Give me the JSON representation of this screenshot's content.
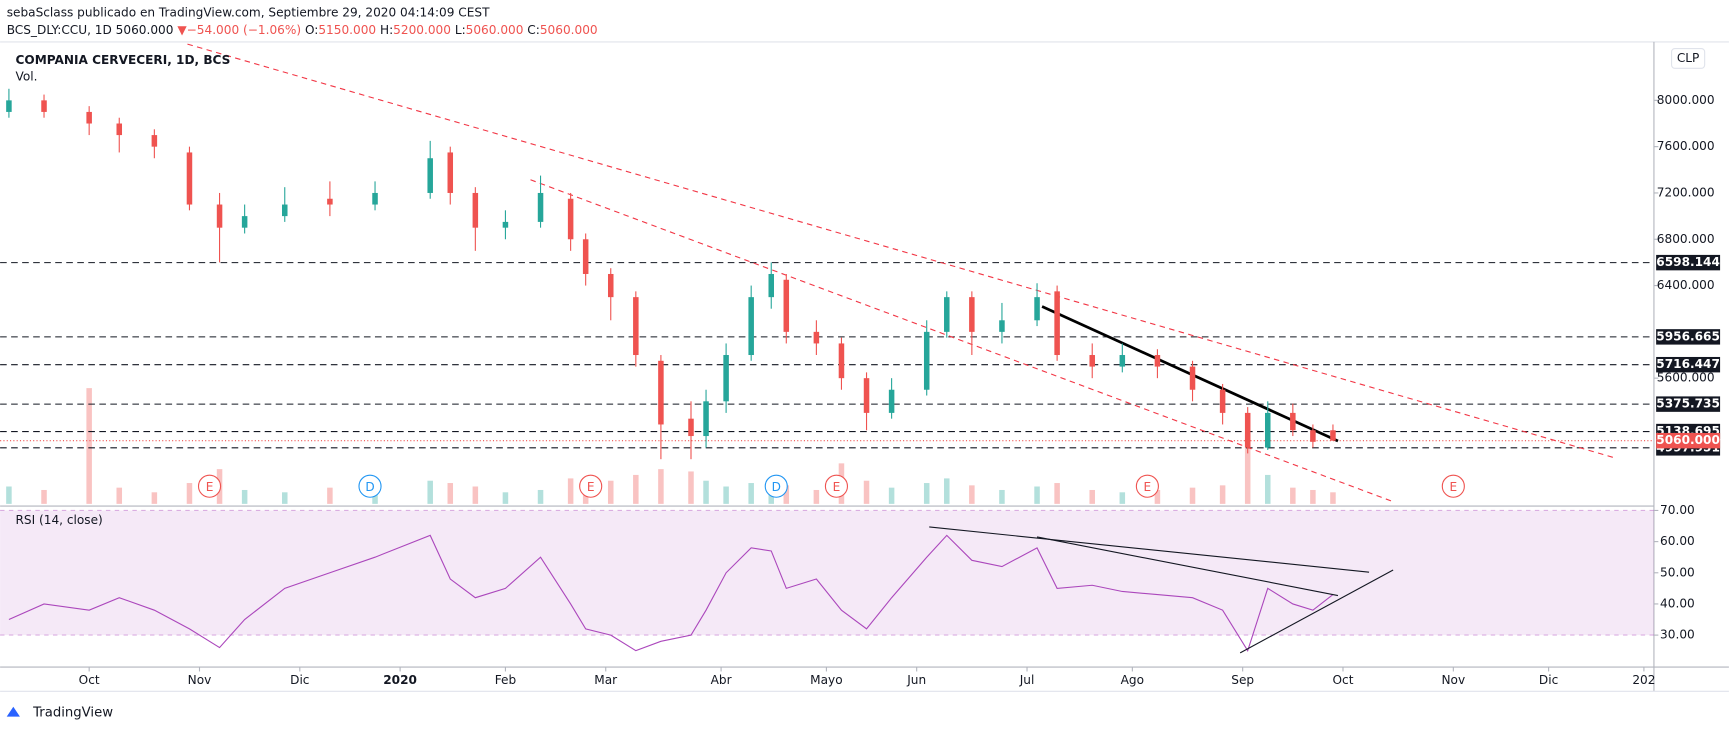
{
  "header": {
    "publisher": "sebaSclass publicado en TradingView.com, Septiembre 29, 2020 04:14:09 CEST",
    "symbol": "BCS_DLY:CCU, 1D",
    "last": "5060.000",
    "arrow": "▼",
    "change": "−54.000 (−1.06%)",
    "o_label": "O:",
    "o": "5150.000",
    "h_label": "H:",
    "h": "5200.000",
    "l_label": "L:",
    "l": "5060.000",
    "c_label": "C:",
    "c": "5060.000",
    "footer": "TradingView"
  },
  "chart_data": {
    "type": "candlestick",
    "title": "COMPANIA CERVECERI, 1D, BCS",
    "volume_title": "Vol.",
    "currency": "CLP",
    "up_color": "#26a69a",
    "down_color": "#ef5350",
    "candles": {
      "x": [
        0,
        7,
        16,
        22,
        29,
        36,
        42,
        47,
        55,
        64,
        73,
        84,
        88,
        93,
        99,
        106,
        112,
        115,
        120,
        125,
        130,
        136,
        139,
        143,
        148,
        152,
        155,
        161,
        166,
        171,
        176,
        183,
        187,
        192,
        198,
        205,
        209,
        216,
        222,
        229,
        236,
        242,
        247,
        251,
        256,
        260,
        264
      ],
      "open": [
        7900,
        8000,
        7900,
        7800,
        7700,
        7550,
        7100,
        6900,
        7000,
        7150,
        7100,
        7200,
        7550,
        7200,
        6900,
        6950,
        7150,
        6800,
        6500,
        6300,
        5750,
        5250,
        5100,
        5400,
        5800,
        6300,
        6450,
        6000,
        5900,
        5600,
        5300,
        5500,
        6000,
        6300,
        6000,
        6100,
        6350,
        5800,
        5700,
        5800,
        5700,
        5500,
        5300,
        5000,
        5300,
        5150,
        5150
      ],
      "high": [
        8100,
        8050,
        7950,
        7850,
        7750,
        7600,
        7200,
        7100,
        7250,
        7300,
        7300,
        7650,
        7600,
        7250,
        7050,
        7350,
        7200,
        6850,
        6550,
        6350,
        5800,
        5400,
        5500,
        5900,
        6400,
        6600,
        6500,
        6100,
        5950,
        5650,
        5600,
        6100,
        6350,
        6350,
        6250,
        6420,
        6400,
        5900,
        5900,
        5850,
        5750,
        5550,
        5350,
        5400,
        5380,
        5200,
        5200
      ],
      "low": [
        7850,
        7850,
        7700,
        7550,
        7500,
        7050,
        6600,
        6850,
        6950,
        7000,
        7050,
        7150,
        7100,
        6700,
        6800,
        6900,
        6700,
        6400,
        6100,
        5700,
        4900,
        4900,
        5000,
        5300,
        5750,
        6200,
        5900,
        5800,
        5500,
        5150,
        5250,
        5450,
        5950,
        5800,
        5900,
        6050,
        5750,
        5600,
        5650,
        5600,
        5400,
        5200,
        4950,
        4980,
        5100,
        5000,
        5060
      ],
      "close": [
        8000,
        7900,
        7800,
        7700,
        7600,
        7100,
        6900,
        7000,
        7100,
        7100,
        7200,
        7500,
        7200,
        6900,
        6950,
        7200,
        6800,
        6500,
        6300,
        5800,
        5200,
        5100,
        5400,
        5800,
        6300,
        6500,
        6000,
        5900,
        5600,
        5300,
        5500,
        6000,
        6300,
        6000,
        6100,
        6300,
        5800,
        5700,
        5800,
        5700,
        5500,
        5300,
        5000,
        5300,
        5150,
        5050,
        5060
      ],
      "volume": [
        15,
        12,
        100,
        14,
        10,
        18,
        30,
        12,
        10,
        14,
        12,
        20,
        18,
        15,
        10,
        12,
        22,
        18,
        20,
        25,
        30,
        28,
        20,
        15,
        18,
        22,
        16,
        12,
        35,
        20,
        14,
        18,
        22,
        16,
        12,
        15,
        18,
        12,
        10,
        12,
        14,
        16,
        60,
        25,
        14,
        12,
        10
      ]
    },
    "xlim": [
      -1.76,
      328
    ],
    "ylim": [
      4514,
      8486
    ],
    "volume_ylim": [
      0,
      100
    ],
    "yticks": [
      {
        "value": 5600,
        "label": "5600.000"
      },
      {
        "value": 6400,
        "label": "6400.000"
      },
      {
        "value": 6800,
        "label": "6800.000"
      },
      {
        "value": 7200,
        "label": "7200.000"
      },
      {
        "value": 7600,
        "label": "7600.000"
      },
      {
        "value": 8000,
        "label": "8000.000"
      }
    ],
    "xticks": [
      {
        "value": 16,
        "label": "Oct"
      },
      {
        "value": 38,
        "label": "Nov"
      },
      {
        "value": 58,
        "label": "Dic"
      },
      {
        "value": 78,
        "label": "2020"
      },
      {
        "value": 99,
        "label": "Feb"
      },
      {
        "value": 119,
        "label": "Mar"
      },
      {
        "value": 142,
        "label": "Abr"
      },
      {
        "value": 163,
        "label": "Mayo"
      },
      {
        "value": 181,
        "label": "Jun"
      },
      {
        "value": 203,
        "label": "Jul"
      },
      {
        "value": 224,
        "label": "Ago"
      },
      {
        "value": 246,
        "label": "Sep"
      },
      {
        "value": 266,
        "label": "Oct"
      },
      {
        "value": 288,
        "label": "Nov"
      },
      {
        "value": 307,
        "label": "Dic"
      },
      {
        "value": 326,
        "label": "202"
      }
    ],
    "levels": [
      6598.144,
      5956.665,
      5716.447,
      5375.735,
      5138.695,
      4997.951
    ],
    "current": {
      "value": 5060,
      "label": "5060.000",
      "color": "#ef5350"
    },
    "events": [
      {
        "x": 40,
        "label": "E"
      },
      {
        "x": 72,
        "label": "D"
      },
      {
        "x": 116,
        "label": "E"
      },
      {
        "x": 153,
        "label": "D"
      },
      {
        "x": 165,
        "label": "E"
      },
      {
        "x": 227,
        "label": "E"
      },
      {
        "x": 288,
        "label": "E"
      }
    ],
    "event_colors": {
      "E": "#ef5350",
      "D": "#2196f3"
    },
    "drawings": [
      {
        "x": [
          35.6,
          320
        ],
        "y": [
          8486,
          4914
        ],
        "color": "#f23645",
        "dashed": true
      },
      {
        "x": [
          104,
          276
        ],
        "y": [
          7314,
          4533
        ],
        "color": "#f23645",
        "dashed": true
      },
      {
        "x": [
          206,
          265
        ],
        "y": [
          6219,
          5057
        ],
        "color": "#000000",
        "dashed": false
      }
    ],
    "rsi": {
      "title": "RSI (14, close)",
      "color": "#ab47bc",
      "ylim": [
        20.1,
        70.7
      ],
      "band": [
        30,
        70
      ],
      "yticks": [
        {
          "value": 30,
          "label": "30.00"
        },
        {
          "value": 40,
          "label": "40.00"
        },
        {
          "value": 50,
          "label": "50.00"
        },
        {
          "value": 60,
          "label": "60.00"
        },
        {
          "value": 70,
          "label": "70.00"
        }
      ],
      "values": [
        35,
        40,
        38,
        42,
        38,
        32,
        26,
        35,
        45,
        50,
        55,
        62,
        48,
        42,
        45,
        55,
        40,
        32,
        30,
        25,
        28,
        30,
        38,
        50,
        58,
        57,
        45,
        48,
        38,
        32,
        42,
        55,
        62,
        54,
        52,
        58,
        45,
        46,
        44,
        43,
        42,
        38,
        25,
        45,
        40,
        38,
        43
      ],
      "drawings": [
        {
          "x": [
            183.5,
            271.2
          ],
          "y": [
            64.7,
            50.2
          ]
        },
        {
          "x": [
            205,
            265
          ],
          "y": [
            61.5,
            42.7
          ]
        },
        {
          "x": [
            245.5,
            276
          ],
          "y": [
            24.3,
            50.9
          ]
        }
      ]
    }
  }
}
